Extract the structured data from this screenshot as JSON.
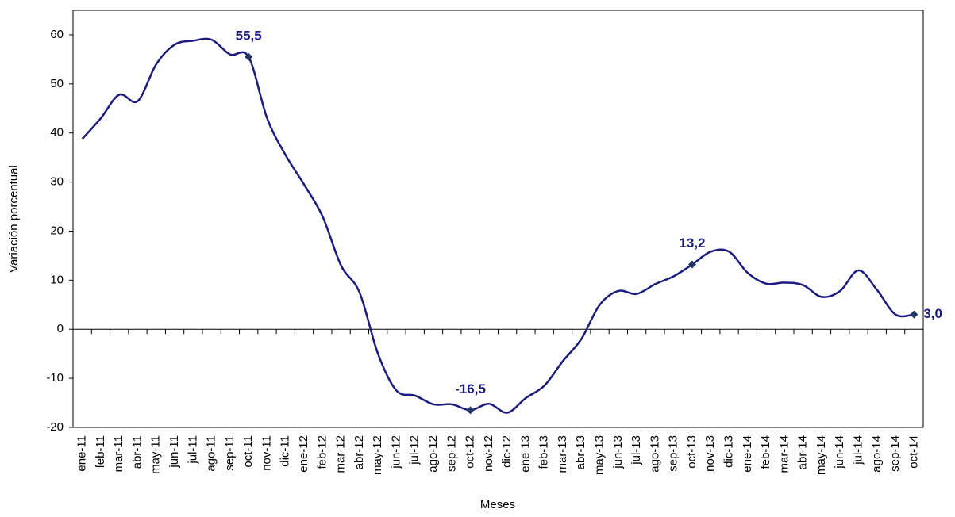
{
  "chart_data": {
    "type": "line",
    "x_label": "Meses",
    "y_label": "Variación porcentual",
    "categories": [
      "ene-11",
      "feb-11",
      "mar-11",
      "abr-11",
      "may-11",
      "jun-11",
      "jul-11",
      "ago-11",
      "sep-11",
      "oct-11",
      "nov-11",
      "dic-11",
      "ene-12",
      "feb-12",
      "mar-12",
      "abr-12",
      "may-12",
      "jun-12",
      "jul-12",
      "ago-12",
      "sep-12",
      "oct-12",
      "nov-12",
      "dic-12",
      "ene-13",
      "feb-13",
      "mar-13",
      "abr-13",
      "may-13",
      "jun-13",
      "jul-13",
      "ago-13",
      "sep-13",
      "oct-13",
      "nov-13",
      "dic-13",
      "ene-14",
      "feb-14",
      "mar-14",
      "abr-14",
      "may-14",
      "jun-14",
      "jul-14",
      "ago-14",
      "sep-14",
      "oct-14"
    ],
    "values": [
      38.8,
      43,
      47.8,
      46.5,
      54,
      58,
      58.8,
      59,
      56,
      55.5,
      43,
      35.5,
      29.5,
      23,
      13,
      7.5,
      -5,
      -12.5,
      -13.5,
      -15.3,
      -15.3,
      -16.5,
      -15.2,
      -17,
      -14,
      -11.5,
      -6.5,
      -2,
      5,
      7.8,
      7.2,
      9.2,
      10.8,
      13.2,
      15.8,
      15.8,
      11.5,
      9.3,
      9.5,
      9,
      6.6,
      7.8,
      12,
      8,
      3,
      3.0
    ],
    "value_labels": [
      null,
      null,
      null,
      null,
      null,
      null,
      null,
      null,
      null,
      "55,5",
      null,
      null,
      null,
      null,
      null,
      null,
      null,
      null,
      null,
      null,
      null,
      "-16,5",
      null,
      null,
      null,
      null,
      null,
      null,
      null,
      null,
      null,
      null,
      null,
      "13,2",
      null,
      null,
      null,
      null,
      null,
      null,
      null,
      null,
      null,
      null,
      null,
      "3,0"
    ],
    "color": "#1c1c80",
    "marker_color": "#1f3864",
    "ylim": [
      -20,
      65
    ],
    "yticks": [
      -20,
      -10,
      0,
      10,
      20,
      30,
      40,
      50,
      60
    ],
    "grid": false
  }
}
